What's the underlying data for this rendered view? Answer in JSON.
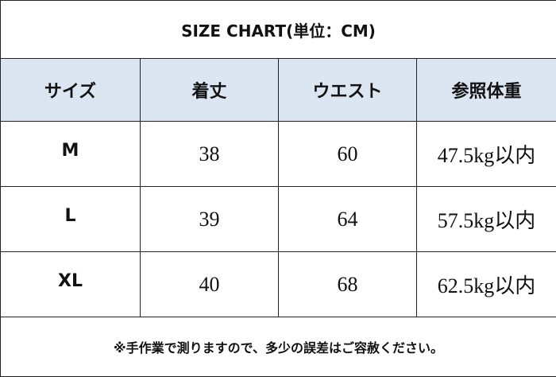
{
  "title": "SIZE CHART(単位：CM)",
  "table": {
    "header": [
      "サイズ",
      "着丈",
      "ウエスト",
      "参照体重"
    ],
    "rows": [
      [
        "M",
        38,
        60,
        "47.5kg以内"
      ],
      [
        "L",
        39,
        64,
        "57.5kg以内"
      ],
      [
        "XL",
        40,
        68,
        "62.5kg以内"
      ]
    ]
  },
  "footnote": "※手作業で測りますので、多少の誤差はご容赦ください。"
}
